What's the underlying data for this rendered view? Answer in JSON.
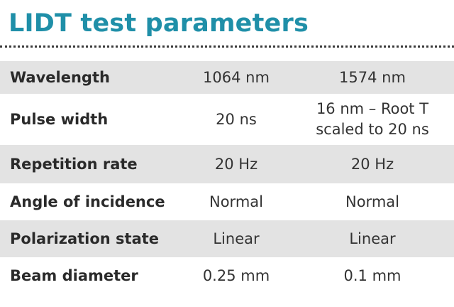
{
  "title": "LIDT test parameters",
  "rows": [
    {
      "label": "Wavelength",
      "v1": "1064 nm",
      "v2": "1574 nm",
      "v2_line2": ""
    },
    {
      "label": "Pulse width",
      "v1": "20 ns",
      "v2": "16 nm – Root T",
      "v2_line2": "scaled to 20 ns"
    },
    {
      "label": "Repetition rate",
      "v1": "20 Hz",
      "v2": "20 Hz",
      "v2_line2": ""
    },
    {
      "label": "Angle of incidence",
      "v1": "Normal",
      "v2": "Normal",
      "v2_line2": ""
    },
    {
      "label": "Polarization state",
      "v1": "Linear",
      "v2": "Linear",
      "v2_line2": ""
    },
    {
      "label": "Beam diameter",
      "v1": "0.25 mm",
      "v2": "0.1 mm",
      "v2_line2": ""
    }
  ],
  "colors": {
    "title": "#1f8fa8",
    "shaded_row": "#e3e3e3",
    "text": "#2a2a2a"
  }
}
